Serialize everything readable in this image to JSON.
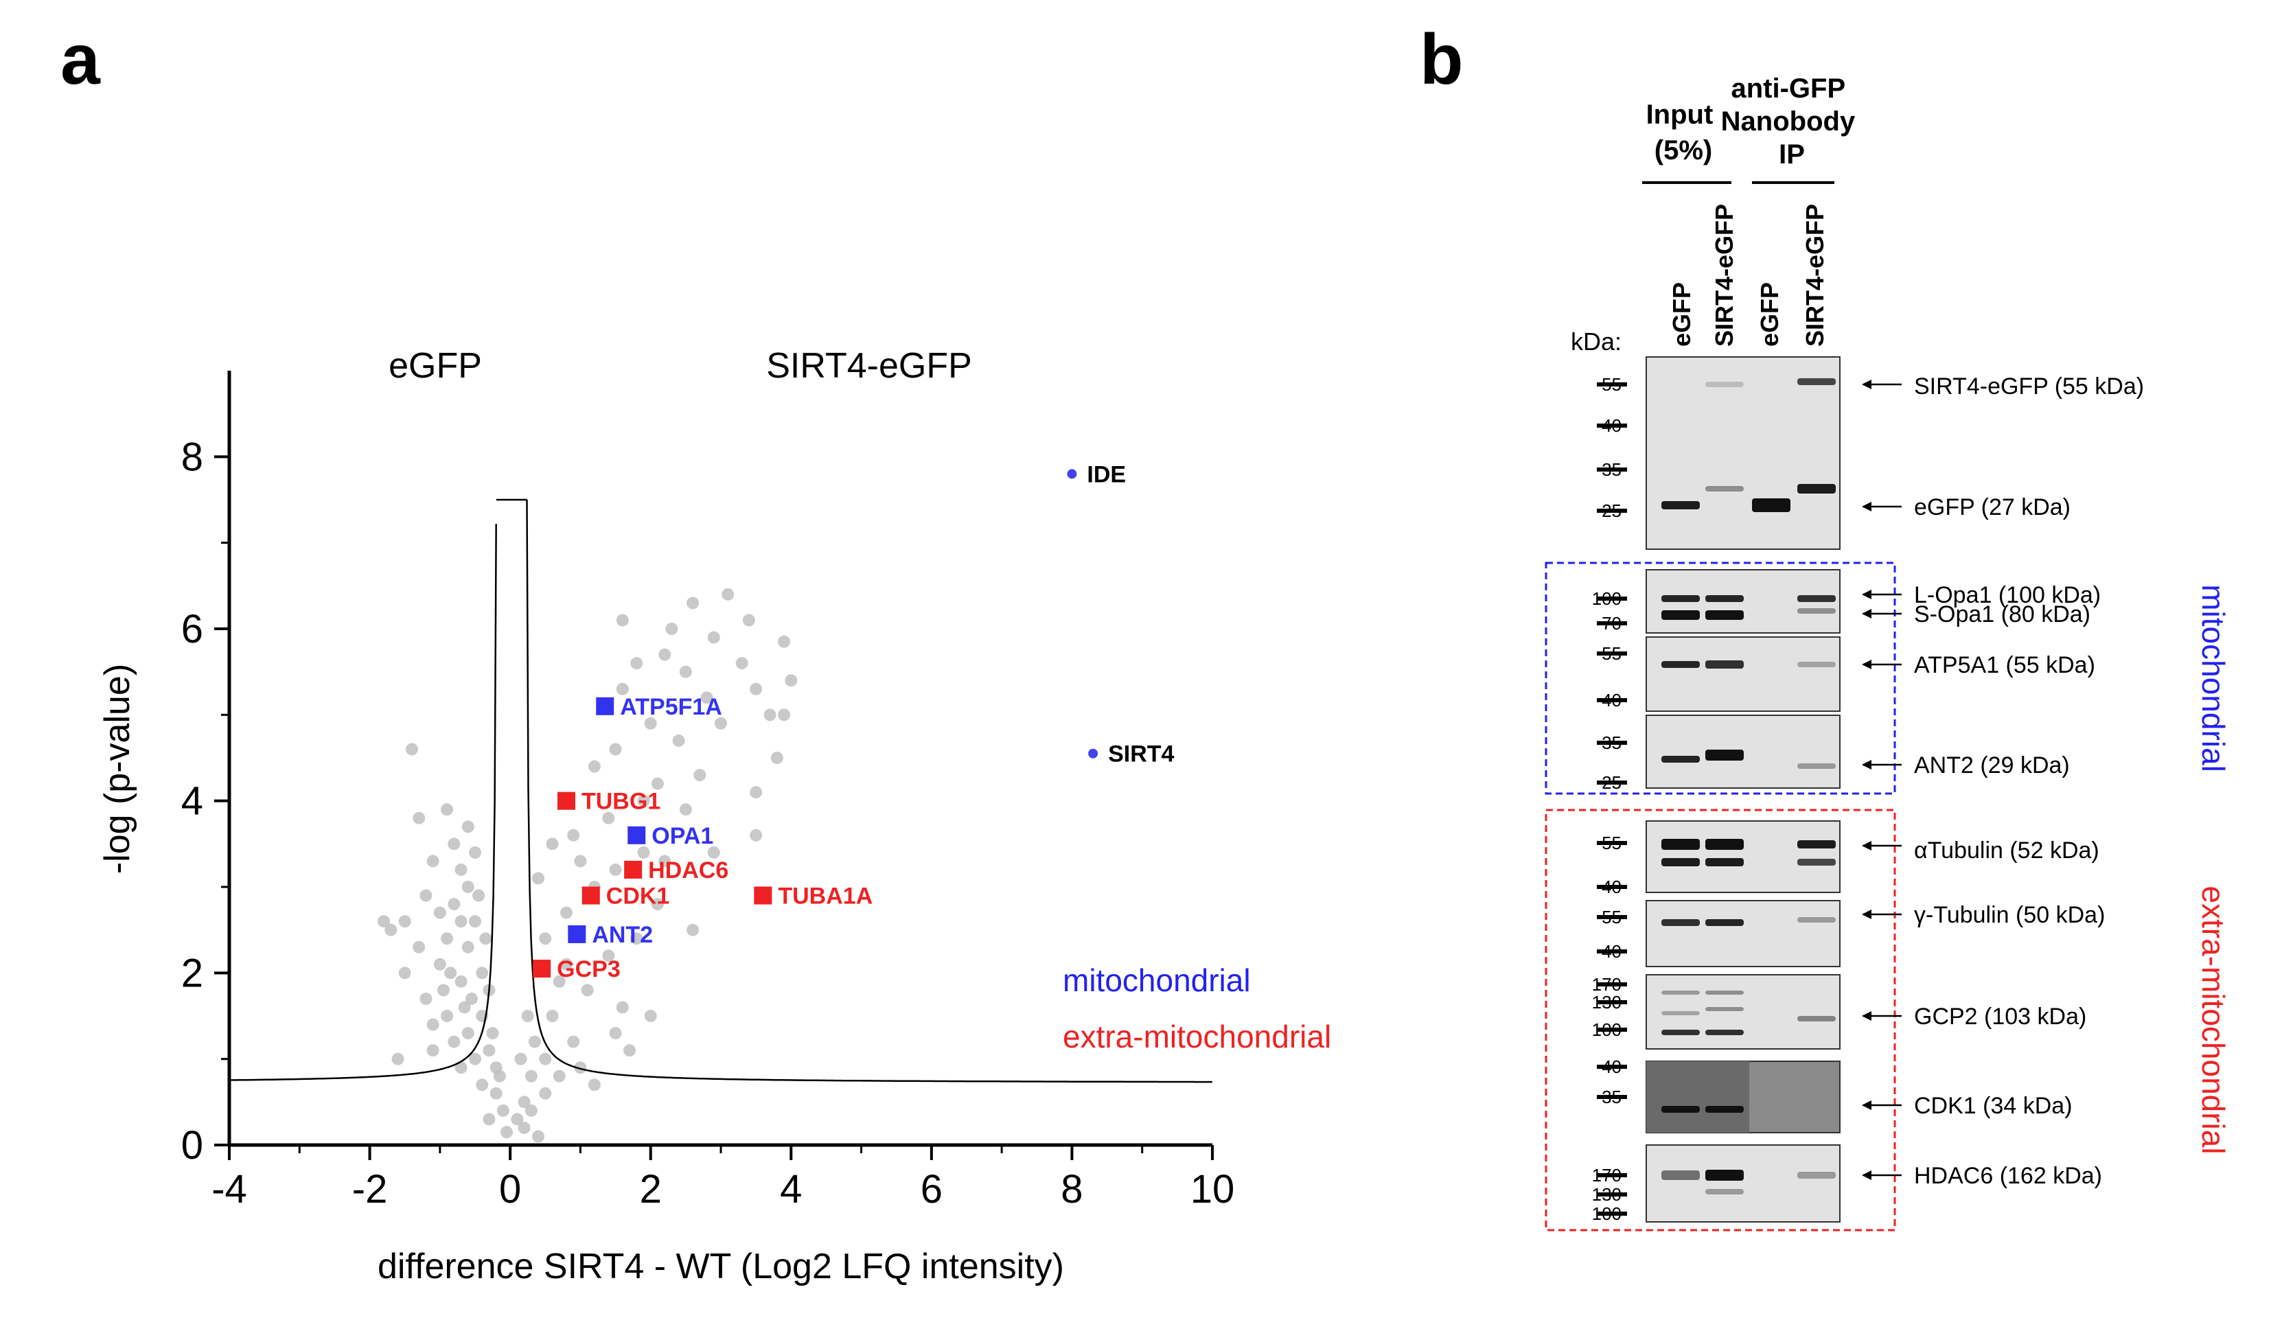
{
  "panels": {
    "a": "a",
    "b": "b"
  },
  "colors": {
    "mito": "#2222ee",
    "extra": "#ee2222",
    "points": "#c0c0c0"
  },
  "chart_data": {
    "type": "scatter",
    "title": "",
    "xlabel": "difference SIRT4 - WT (Log2 LFQ intensity)",
    "ylabel": "-log (p-value)",
    "xlim": [
      -4,
      10
    ],
    "ylim": [
      0,
      9
    ],
    "xticks": [
      "-4",
      "-2",
      "0",
      "2",
      "4",
      "6",
      "8",
      "10"
    ],
    "yticks": [
      "0",
      "2",
      "4",
      "6",
      "8"
    ],
    "condition_left": "eGFP",
    "condition_right": "SIRT4-eGFP",
    "legend": {
      "mito": "mitochondrial",
      "extra": "extra-mitochondrial"
    },
    "labeled": [
      {
        "name": "IDE",
        "x": 8.0,
        "y": 7.8,
        "group": "circle-mito"
      },
      {
        "name": "SIRT4",
        "x": 8.3,
        "y": 4.55,
        "group": "circle-mito"
      },
      {
        "name": "ATP5F1A",
        "x": 1.35,
        "y": 5.1,
        "group": "mito"
      },
      {
        "name": "OPA1",
        "x": 1.8,
        "y": 3.6,
        "group": "mito"
      },
      {
        "name": "ANT2",
        "x": 0.95,
        "y": 2.45,
        "group": "mito"
      },
      {
        "name": "TUBG1",
        "x": 0.8,
        "y": 4.0,
        "group": "extra"
      },
      {
        "name": "HDAC6",
        "x": 1.75,
        "y": 3.2,
        "group": "extra"
      },
      {
        "name": "CDK1",
        "x": 1.15,
        "y": 2.9,
        "group": "extra"
      },
      {
        "name": "TUBA1A",
        "x": 3.6,
        "y": 2.9,
        "group": "extra"
      },
      {
        "name": "GCP3",
        "x": 0.45,
        "y": 2.05,
        "group": "extra"
      }
    ],
    "background_points": [
      [
        1.6,
        6.1
      ],
      [
        2.3,
        6.0
      ],
      [
        2.6,
        6.3
      ],
      [
        3.1,
        6.4
      ],
      [
        2.9,
        5.9
      ],
      [
        3.4,
        6.1
      ],
      [
        3.9,
        5.85
      ],
      [
        4.0,
        5.4
      ],
      [
        3.5,
        5.3
      ],
      [
        3.7,
        5.0
      ],
      [
        3.3,
        5.6
      ],
      [
        2.2,
        5.7
      ],
      [
        1.8,
        5.6
      ],
      [
        1.6,
        5.3
      ],
      [
        2.5,
        5.5
      ],
      [
        2.8,
        5.2
      ],
      [
        3.0,
        4.9
      ],
      [
        2.4,
        4.7
      ],
      [
        2.0,
        4.9
      ],
      [
        1.5,
        4.6
      ],
      [
        1.2,
        4.4
      ],
      [
        3.8,
        4.5
      ],
      [
        3.9,
        5.0
      ],
      [
        2.7,
        4.3
      ],
      [
        2.1,
        4.2
      ],
      [
        1.9,
        4.0
      ],
      [
        1.4,
        3.8
      ],
      [
        3.5,
        4.1
      ],
      [
        3.5,
        3.6
      ],
      [
        2.5,
        3.9
      ],
      [
        2.9,
        3.4
      ],
      [
        2.2,
        3.3
      ],
      [
        1.9,
        3.4
      ],
      [
        1.5,
        3.2
      ],
      [
        1.2,
        3.0
      ],
      [
        1.0,
        3.3
      ],
      [
        0.9,
        3.6
      ],
      [
        0.6,
        3.5
      ],
      [
        2.1,
        2.8
      ],
      [
        2.6,
        2.5
      ],
      [
        1.8,
        2.4
      ],
      [
        1.4,
        2.2
      ],
      [
        0.8,
        2.1
      ],
      [
        1.1,
        1.8
      ],
      [
        1.6,
        1.6
      ],
      [
        2.0,
        1.5
      ],
      [
        1.5,
        1.3
      ],
      [
        0.9,
        1.2
      ],
      [
        0.6,
        1.5
      ],
      [
        0.7,
        1.9
      ],
      [
        0.5,
        2.4
      ],
      [
        0.4,
        3.1
      ],
      [
        0.8,
        2.7
      ],
      [
        1.7,
        1.1
      ],
      [
        1.0,
        0.9
      ],
      [
        0.7,
        0.8
      ],
      [
        1.2,
        0.7
      ],
      [
        0.5,
        0.6
      ],
      [
        0.3,
        0.4
      ],
      [
        0.2,
        0.2
      ],
      [
        0.4,
        0.1
      ],
      [
        0.1,
        0.3
      ],
      [
        0.2,
        0.5
      ],
      [
        0.3,
        0.8
      ],
      [
        0.15,
        1.0
      ],
      [
        0.35,
        1.2
      ],
      [
        0.25,
        1.5
      ],
      [
        0.5,
        1.0
      ],
      [
        -1.4,
        4.6
      ],
      [
        -1.3,
        3.8
      ],
      [
        -1.7,
        2.5
      ],
      [
        -1.5,
        2.6
      ],
      [
        -1.8,
        2.6
      ],
      [
        -1.2,
        2.9
      ],
      [
        -1.5,
        2.0
      ],
      [
        -1.1,
        3.3
      ],
      [
        -0.9,
        3.9
      ],
      [
        -0.7,
        3.2
      ],
      [
        -0.6,
        3.0
      ],
      [
        -0.8,
        2.8
      ],
      [
        -0.5,
        3.4
      ],
      [
        -0.9,
        2.4
      ],
      [
        -1.0,
        2.1
      ],
      [
        -1.2,
        1.7
      ],
      [
        -1.6,
        1.0
      ],
      [
        -1.1,
        1.1
      ],
      [
        -0.7,
        1.9
      ],
      [
        -0.6,
        2.3
      ],
      [
        -0.5,
        2.6
      ],
      [
        -0.4,
        2.0
      ],
      [
        -0.3,
        1.8
      ],
      [
        -0.4,
        1.5
      ],
      [
        -0.6,
        1.3
      ],
      [
        -0.8,
        1.2
      ],
      [
        -0.5,
        1.0
      ],
      [
        -0.3,
        1.1
      ],
      [
        -0.2,
        0.9
      ],
      [
        -0.4,
        0.7
      ],
      [
        -0.2,
        0.6
      ],
      [
        -0.1,
        0.4
      ],
      [
        -0.3,
        0.3
      ],
      [
        -0.05,
        0.15
      ],
      [
        -0.15,
        0.8
      ],
      [
        -0.7,
        0.9
      ],
      [
        -0.9,
        1.5
      ],
      [
        -1.3,
        2.3
      ],
      [
        -0.8,
        3.5
      ],
      [
        -0.6,
        3.7
      ],
      [
        -0.7,
        2.6
      ],
      [
        -0.45,
        2.9
      ],
      [
        -0.35,
        2.4
      ],
      [
        -1.0,
        2.7
      ],
      [
        -0.85,
        2.0
      ],
      [
        -0.55,
        1.7
      ],
      [
        -0.25,
        1.3
      ],
      [
        -0.65,
        1.6
      ],
      [
        -1.1,
        1.4
      ],
      [
        -0.95,
        1.8
      ]
    ]
  },
  "blot": {
    "headers": {
      "input": "Input (5%)",
      "ip": "anti-GFP Nanobody IP"
    },
    "lanes": [
      "eGFP",
      "SIRT4-eGFP",
      "eGFP",
      "SIRT4-eGFP"
    ],
    "kda_title": "kDa:",
    "rows": [
      {
        "markers": [
          "55",
          "40",
          "35",
          "25"
        ],
        "proteins": [
          "SIRT4-eGFP (55 kDa)",
          "eGFP (27 kDa)"
        ]
      },
      {
        "markers": [
          "100",
          "70"
        ],
        "proteins": [
          "L-Opa1 (100 kDa)",
          "S-Opa1 (80 kDa)"
        ]
      },
      {
        "markers": [
          "55",
          "40"
        ],
        "proteins": [
          "ATP5A1 (55 kDa)"
        ]
      },
      {
        "markers": [
          "35",
          "25"
        ],
        "proteins": [
          "ANT2 (29 kDa)"
        ]
      },
      {
        "markers": [
          "55",
          "40"
        ],
        "proteins": [
          "αTubulin (52 kDa)"
        ]
      },
      {
        "markers": [
          "55",
          "40"
        ],
        "proteins": [
          "γ-Tubulin (50 kDa)"
        ]
      },
      {
        "markers": [
          "170",
          "130",
          "100"
        ],
        "proteins": [
          "GCP2 (103 kDa)"
        ]
      },
      {
        "markers": [
          "40",
          "35"
        ],
        "proteins": [
          "CDK1 (34 kDa)"
        ]
      },
      {
        "markers": [
          "170",
          "130",
          "100"
        ],
        "proteins": [
          "HDAC6 (162 kDa)"
        ]
      }
    ],
    "groups": {
      "mito": "mitochondrial",
      "extra": "extra-mitochondrial"
    }
  }
}
